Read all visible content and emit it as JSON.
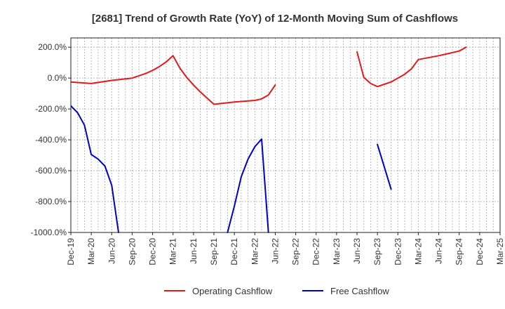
{
  "chart_data": {
    "type": "line",
    "title": "[2681]  Trend of Growth Rate (YoY) of 12-Month Moving Sum of Cashflows",
    "xlabel": "",
    "ylabel": "",
    "ylim": [
      -1000,
      260
    ],
    "y_ticks": [
      200,
      0,
      -200,
      -400,
      -600,
      -800,
      -1000
    ],
    "y_tick_labels": [
      "200.0%",
      "0.0%",
      "-200.0%",
      "-400.0%",
      "-600.0%",
      "-800.0%",
      "-1000.0%"
    ],
    "x_range": [
      "Dec-19",
      "Mar-25"
    ],
    "x_tick_labels": [
      "Dec-19",
      "Mar-20",
      "Jun-20",
      "Sep-20",
      "Dec-20",
      "Mar-21",
      "Jun-21",
      "Sep-21",
      "Dec-21",
      "Mar-22",
      "Jun-22",
      "Sep-22",
      "Dec-22",
      "Mar-23",
      "Jun-23",
      "Sep-23",
      "Dec-23",
      "Mar-24",
      "Jun-24",
      "Sep-24",
      "Dec-24",
      "Mar-25"
    ],
    "grid": true,
    "legend": "bottom",
    "series": [
      {
        "name": "Operating Cashflow",
        "color": "#e31a1c",
        "points": [
          [
            "Dec-19",
            -25
          ],
          [
            "Mar-20",
            -35
          ],
          [
            "Jun-20",
            -15
          ],
          [
            "Sep-20",
            0
          ],
          [
            "Oct-20",
            15
          ],
          [
            "Nov-20",
            30
          ],
          [
            "Dec-20",
            50
          ],
          [
            "Jan-21",
            75
          ],
          [
            "Feb-21",
            105
          ],
          [
            "Mar-21",
            145
          ],
          [
            "Apr-21",
            65
          ],
          [
            "May-21",
            5
          ],
          [
            "Jun-21",
            -45
          ],
          [
            "Jul-21",
            -90
          ],
          [
            "Aug-21",
            -130
          ],
          [
            "Sep-21",
            -170
          ],
          [
            "Dec-21",
            -155
          ],
          [
            "Mar-22",
            -145
          ],
          [
            "Apr-22",
            -135
          ],
          [
            "May-22",
            -110
          ],
          [
            "Jun-22",
            -45
          ],
          null,
          [
            "Jun-23",
            170
          ],
          [
            "Jul-23",
            5
          ],
          [
            "Aug-23",
            -35
          ],
          [
            "Sep-23",
            -55
          ],
          [
            "Oct-23",
            -40
          ],
          [
            "Nov-23",
            -25
          ],
          [
            "Dec-23",
            0
          ],
          [
            "Jan-24",
            25
          ],
          [
            "Feb-24",
            60
          ],
          [
            "Mar-24",
            120
          ],
          [
            "Jun-24",
            145
          ],
          [
            "Sep-24",
            175
          ],
          [
            "Oct-24",
            200
          ]
        ]
      },
      {
        "name": "Free Cashflow",
        "color": "#0000cc",
        "points": [
          [
            "Dec-19",
            -180
          ],
          [
            "Jan-20",
            -225
          ],
          [
            "Feb-20",
            -305
          ],
          [
            "Mar-20",
            -495
          ],
          [
            "Apr-20",
            -525
          ],
          [
            "May-20",
            -570
          ],
          [
            "Jun-20",
            -695
          ],
          [
            "Jul-20",
            -1000
          ],
          null,
          [
            "Nov-21",
            -1000
          ],
          [
            "Dec-21",
            -830
          ],
          [
            "Jan-22",
            -640
          ],
          [
            "Feb-22",
            -525
          ],
          [
            "Mar-22",
            -445
          ],
          [
            "Apr-22",
            -395
          ],
          [
            "May-22",
            -1000
          ],
          null,
          [
            "Sep-23",
            -430
          ],
          [
            "Nov-23",
            -720
          ]
        ]
      }
    ]
  }
}
